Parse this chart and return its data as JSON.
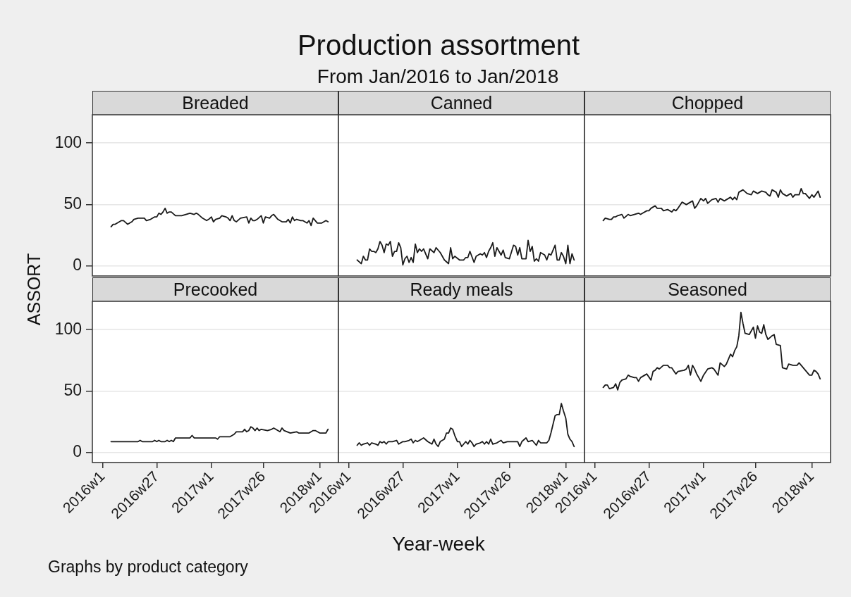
{
  "chart_data": [
    {
      "type": "other",
      "title": "Production assortment",
      "subtitle": "From Jan/2016 to Jan/2018",
      "xlabel": "Year-week",
      "ylabel": "ASSORT",
      "annotations": [
        "Graphs by product category"
      ]
    },
    {
      "type": "line",
      "title": "Breaded",
      "color": "#1a1a1a",
      "tick_labels": "y",
      "grid": "y",
      "xlim": [
        "2015-11-27",
        "2018-03-05"
      ],
      "ylim": [
        -8,
        123
      ],
      "yticks": [
        0,
        50,
        100
      ],
      "x": [
        "2016-01-29",
        "2016-02-05",
        "2016-02-12",
        "2016-03-04",
        "2016-03-11",
        "2016-03-25",
        "2016-04-08",
        "2016-04-15",
        "2016-04-29",
        "2016-05-20",
        "2016-05-27",
        "2016-06-10",
        "2016-06-24",
        "2016-07-01",
        "2016-07-08",
        "2016-07-15",
        "2016-07-22",
        "2016-07-29",
        "2016-08-05",
        "2016-08-12",
        "2016-08-19",
        "2016-09-02",
        "2016-09-23",
        "2016-10-07",
        "2016-10-21",
        "2016-11-04",
        "2016-11-11",
        "2016-11-18",
        "2016-12-02",
        "2016-12-16",
        "2016-12-23",
        "2017-01-01",
        "2017-01-08",
        "2017-01-15",
        "2017-01-29",
        "2017-02-05",
        "2017-02-19",
        "2017-02-26",
        "2017-03-05",
        "2017-03-12",
        "2017-03-19",
        "2017-03-26",
        "2017-04-09",
        "2017-04-30",
        "2017-05-07",
        "2017-05-14",
        "2017-05-21",
        "2017-05-28",
        "2017-06-04",
        "2017-06-18",
        "2017-06-25",
        "2017-07-02",
        "2017-07-16",
        "2017-07-23",
        "2017-07-30",
        "2017-08-13",
        "2017-08-27",
        "2017-09-10",
        "2017-09-17",
        "2017-09-24",
        "2017-10-01",
        "2017-10-08",
        "2017-10-15",
        "2017-10-29",
        "2017-11-05",
        "2017-11-19",
        "2017-11-26",
        "2017-12-03",
        "2017-12-10",
        "2017-12-24",
        "2018-01-08",
        "2018-01-22",
        "2018-01-29"
      ],
      "values": [
        32,
        34,
        34,
        37,
        37,
        34,
        36,
        38,
        39,
        39,
        37,
        38,
        40,
        40,
        43,
        42,
        44,
        47,
        43,
        44,
        44,
        41,
        41,
        42,
        43,
        42,
        43,
        42,
        39,
        37,
        38,
        40,
        36,
        38,
        39,
        41,
        40,
        39,
        37,
        41,
        37,
        36,
        39,
        40,
        35,
        39,
        37,
        37,
        38,
        41,
        35,
        40,
        39,
        41,
        42,
        38,
        36,
        36,
        38,
        35,
        40,
        37,
        38,
        37,
        37,
        35,
        37,
        33,
        39,
        35,
        35,
        37,
        36
      ]
    },
    {
      "type": "line",
      "title": "Canned",
      "color": "#1a1a1a",
      "tick_labels": false,
      "grid": "y",
      "xlim": [
        "2015-11-27",
        "2018-03-05"
      ],
      "ylim": [
        -8,
        123
      ],
      "yticks": [
        0,
        50,
        100
      ],
      "x": [
        "2016-01-29",
        "2016-02-12",
        "2016-02-19",
        "2016-02-26",
        "2016-03-04",
        "2016-03-11",
        "2016-03-18",
        "2016-03-25",
        "2016-04-01",
        "2016-04-08",
        "2016-04-15",
        "2016-04-22",
        "2016-04-29",
        "2016-05-06",
        "2016-05-13",
        "2016-05-20",
        "2016-05-27",
        "2016-06-03",
        "2016-06-10",
        "2016-06-17",
        "2016-06-24",
        "2016-07-01",
        "2016-07-08",
        "2016-07-15",
        "2016-07-22",
        "2016-07-29",
        "2016-08-05",
        "2016-08-12",
        "2016-08-19",
        "2016-08-26",
        "2016-09-02",
        "2016-09-09",
        "2016-09-23",
        "2016-09-30",
        "2016-10-14",
        "2016-10-21",
        "2016-11-04",
        "2016-11-18",
        "2016-12-02",
        "2016-12-09",
        "2016-12-16",
        "2016-12-23",
        "2017-01-08",
        "2017-01-22",
        "2017-01-29",
        "2017-02-05",
        "2017-02-12",
        "2017-02-26",
        "2017-03-05",
        "2017-03-19",
        "2017-03-26",
        "2017-04-02",
        "2017-04-09",
        "2017-04-16",
        "2017-04-23",
        "2017-04-30",
        "2017-05-07",
        "2017-05-14",
        "2017-05-28",
        "2017-06-04",
        "2017-06-11",
        "2017-06-25",
        "2017-07-09",
        "2017-07-16",
        "2017-07-23",
        "2017-07-30",
        "2017-08-06",
        "2017-08-20",
        "2017-08-27",
        "2017-09-03",
        "2017-09-10",
        "2017-09-17",
        "2017-09-24",
        "2017-10-01",
        "2017-10-08",
        "2017-10-22",
        "2017-10-29",
        "2017-11-05",
        "2017-11-12",
        "2017-11-26",
        "2017-12-03",
        "2017-12-10",
        "2017-12-17",
        "2017-12-24",
        "2018-01-01",
        "2018-01-08",
        "2018-01-15",
        "2018-01-22",
        "2018-01-29"
      ],
      "values": [
        5,
        2,
        8,
        5,
        5,
        14,
        12,
        12,
        11,
        14,
        20,
        17,
        11,
        18,
        17,
        20,
        8,
        12,
        12,
        19,
        15,
        1,
        6,
        8,
        3,
        7,
        3,
        18,
        11,
        14,
        12,
        14,
        6,
        14,
        11,
        15,
        11,
        5,
        2,
        15,
        6,
        8,
        5,
        5,
        7,
        7,
        12,
        3,
        8,
        10,
        9,
        11,
        7,
        12,
        15,
        19,
        8,
        15,
        9,
        13,
        7,
        6,
        17,
        16,
        9,
        15,
        6,
        6,
        21,
        12,
        16,
        4,
        6,
        4,
        11,
        9,
        5,
        10,
        9,
        17,
        5,
        5,
        11,
        8,
        2,
        17,
        2,
        10,
        5
      ]
    },
    {
      "type": "line",
      "title": "Chopped",
      "color": "#1a1a1a",
      "tick_labels": false,
      "grid": "y",
      "xlim": [
        "2015-11-27",
        "2018-03-05"
      ],
      "ylim": [
        -8,
        123
      ],
      "yticks": [
        0,
        50,
        100
      ],
      "x": [
        "2016-01-29",
        "2016-02-05",
        "2016-02-19",
        "2016-02-26",
        "2016-03-04",
        "2016-03-11",
        "2016-03-18",
        "2016-04-01",
        "2016-04-08",
        "2016-04-22",
        "2016-04-29",
        "2016-05-13",
        "2016-05-27",
        "2016-06-03",
        "2016-06-10",
        "2016-06-24",
        "2016-07-01",
        "2016-07-08",
        "2016-07-22",
        "2016-07-29",
        "2016-08-12",
        "2016-08-19",
        "2016-09-02",
        "2016-09-16",
        "2016-09-23",
        "2016-09-30",
        "2016-10-07",
        "2016-10-21",
        "2016-11-04",
        "2016-11-11",
        "2016-11-25",
        "2016-12-02",
        "2016-12-09",
        "2016-12-23",
        "2017-01-01",
        "2017-01-08",
        "2017-01-15",
        "2017-01-29",
        "2017-02-12",
        "2017-02-19",
        "2017-02-26",
        "2017-03-12",
        "2017-03-19",
        "2017-04-02",
        "2017-04-09",
        "2017-04-16",
        "2017-04-23",
        "2017-04-30",
        "2017-05-14",
        "2017-05-28",
        "2017-06-11",
        "2017-06-18",
        "2017-07-02",
        "2017-07-16",
        "2017-07-30",
        "2017-08-06",
        "2017-08-13",
        "2017-08-20",
        "2017-09-03",
        "2017-09-10",
        "2017-09-17",
        "2017-09-24",
        "2017-10-08",
        "2017-10-22",
        "2017-10-29",
        "2017-11-05",
        "2017-11-19",
        "2017-11-26",
        "2017-12-03",
        "2017-12-10",
        "2017-12-24",
        "2018-01-01",
        "2018-01-08",
        "2018-01-22",
        "2018-01-29"
      ],
      "values": [
        37,
        39,
        38,
        38,
        40,
        40,
        41,
        42,
        39,
        42,
        41,
        42,
        43,
        42,
        43,
        45,
        45,
        47,
        49,
        47,
        47,
        45,
        46,
        44,
        46,
        45,
        47,
        52,
        50,
        51,
        53,
        47,
        49,
        55,
        53,
        55,
        51,
        54,
        55,
        52,
        55,
        53,
        54,
        56,
        54,
        56,
        54,
        60,
        62,
        59,
        58,
        61,
        59,
        61,
        60,
        58,
        57,
        62,
        60,
        56,
        62,
        59,
        57,
        59,
        56,
        58,
        58,
        63,
        59,
        59,
        55,
        58,
        56,
        61,
        56
      ]
    },
    {
      "type": "line",
      "title": "Precooked",
      "color": "#1a1a1a",
      "grid": "y",
      "xlim": [
        "2015-11-27",
        "2018-03-05"
      ],
      "ylim": [
        -8,
        123
      ],
      "xticks": [
        {
          "value": "2016-01-01",
          "label": "2016w1"
        },
        {
          "value": "2016-07-01",
          "label": "2016w27"
        },
        {
          "value": "2017-01-01",
          "label": "2017w1"
        },
        {
          "value": "2017-06-25",
          "label": "2017w26"
        },
        {
          "value": "2018-01-01",
          "label": "2018w1"
        }
      ],
      "yticks": [
        0,
        50,
        100
      ],
      "x": [
        "2016-01-29",
        "2016-04-29",
        "2016-05-06",
        "2016-05-13",
        "2016-06-17",
        "2016-06-24",
        "2016-07-01",
        "2016-07-08",
        "2016-07-15",
        "2016-07-29",
        "2016-08-05",
        "2016-08-12",
        "2016-08-19",
        "2016-08-26",
        "2016-09-02",
        "2016-10-21",
        "2016-10-28",
        "2016-11-04",
        "2017-01-15",
        "2017-01-22",
        "2017-01-29",
        "2017-03-05",
        "2017-03-19",
        "2017-03-26",
        "2017-04-16",
        "2017-04-23",
        "2017-04-30",
        "2017-05-07",
        "2017-05-14",
        "2017-05-21",
        "2017-05-28",
        "2017-06-04",
        "2017-06-11",
        "2017-06-18",
        "2017-07-09",
        "2017-07-23",
        "2017-07-30",
        "2017-08-13",
        "2017-08-20",
        "2017-08-27",
        "2017-09-03",
        "2017-09-24",
        "2017-10-15",
        "2017-10-22",
        "2017-11-26",
        "2017-12-10",
        "2017-12-17",
        "2018-01-01",
        "2018-01-22",
        "2018-01-29"
      ],
      "values": [
        9,
        9,
        10,
        9,
        9,
        10,
        9,
        10,
        9,
        9,
        10,
        9,
        10,
        9,
        12,
        12,
        14,
        12,
        12,
        11,
        13,
        13,
        15,
        17,
        17,
        19,
        17,
        18,
        21,
        20,
        18,
        20,
        18,
        19,
        18,
        19,
        20,
        18,
        17,
        20,
        18,
        16,
        17,
        16,
        16,
        18,
        18,
        16,
        16,
        19
      ]
    },
    {
      "type": "line",
      "title": "Ready meals",
      "color": "#1a1a1a",
      "tick_labels": "x",
      "grid": "y",
      "xlim": [
        "2015-11-27",
        "2018-03-05"
      ],
      "ylim": [
        -8,
        123
      ],
      "xticks": [
        {
          "value": "2016-01-01",
          "label": "2016w1"
        },
        {
          "value": "2016-07-01",
          "label": "2016w27"
        },
        {
          "value": "2017-01-01",
          "label": "2017w1"
        },
        {
          "value": "2017-06-25",
          "label": "2017w26"
        },
        {
          "value": "2018-01-01",
          "label": "2018w1"
        }
      ],
      "yticks": [
        0,
        50,
        100
      ],
      "x": [
        "2016-01-29",
        "2016-02-05",
        "2016-02-12",
        "2016-02-19",
        "2016-03-04",
        "2016-03-11",
        "2016-03-18",
        "2016-04-01",
        "2016-04-08",
        "2016-04-15",
        "2016-04-22",
        "2016-04-29",
        "2016-05-06",
        "2016-05-13",
        "2016-05-27",
        "2016-06-10",
        "2016-06-17",
        "2016-07-01",
        "2016-07-08",
        "2016-07-22",
        "2016-07-29",
        "2016-08-05",
        "2016-08-12",
        "2016-08-19",
        "2016-09-09",
        "2016-09-23",
        "2016-10-07",
        "2016-10-14",
        "2016-10-21",
        "2016-10-28",
        "2016-11-04",
        "2016-11-18",
        "2016-11-25",
        "2016-12-02",
        "2016-12-09",
        "2016-12-16",
        "2016-12-23",
        "2017-01-01",
        "2017-01-08",
        "2017-01-15",
        "2017-01-29",
        "2017-02-05",
        "2017-02-12",
        "2017-02-19",
        "2017-02-26",
        "2017-03-05",
        "2017-03-19",
        "2017-03-26",
        "2017-04-02",
        "2017-04-09",
        "2017-04-16",
        "2017-04-23",
        "2017-04-30",
        "2017-05-14",
        "2017-05-28",
        "2017-06-04",
        "2017-06-18",
        "2017-07-02",
        "2017-07-09",
        "2017-07-23",
        "2017-07-30",
        "2017-08-06",
        "2017-08-20",
        "2017-08-27",
        "2017-09-10",
        "2017-09-17",
        "2017-09-24",
        "2017-10-01",
        "2017-10-08",
        "2017-10-29",
        "2017-11-05",
        "2017-11-12",
        "2017-11-26",
        "2017-12-03",
        "2017-12-10",
        "2017-12-17",
        "2017-12-24",
        "2018-01-01",
        "2018-01-08",
        "2018-01-15",
        "2018-01-22",
        "2018-01-29"
      ],
      "values": [
        6,
        8,
        6,
        7,
        8,
        6,
        8,
        7,
        6,
        9,
        8,
        9,
        7,
        9,
        9,
        10,
        7,
        9,
        9,
        10,
        11,
        8,
        10,
        9,
        12,
        9,
        7,
        11,
        7,
        5,
        9,
        11,
        16,
        16,
        20,
        19,
        14,
        9,
        9,
        5,
        9,
        7,
        10,
        8,
        5,
        7,
        8,
        9,
        7,
        9,
        7,
        11,
        7,
        8,
        10,
        8,
        9,
        9,
        9,
        9,
        5,
        9,
        12,
        9,
        10,
        8,
        6,
        10,
        8,
        8,
        10,
        16,
        30,
        31,
        31,
        40,
        34,
        28,
        15,
        11,
        9,
        5
      ]
    },
    {
      "type": "line",
      "title": "Seasoned",
      "color": "#1a1a1a",
      "tick_labels": "x",
      "grid": "y",
      "xlim": [
        "2015-11-27",
        "2018-03-05"
      ],
      "ylim": [
        -8,
        123
      ],
      "xticks": [
        {
          "value": "2016-01-01",
          "label": "2016w1"
        },
        {
          "value": "2016-07-01",
          "label": "2016w27"
        },
        {
          "value": "2017-01-01",
          "label": "2017w1"
        },
        {
          "value": "2017-06-25",
          "label": "2017w26"
        },
        {
          "value": "2018-01-01",
          "label": "2018w1"
        }
      ],
      "yticks": [
        0,
        50,
        100
      ],
      "x": [
        "2016-01-29",
        "2016-02-05",
        "2016-02-12",
        "2016-02-19",
        "2016-03-04",
        "2016-03-11",
        "2016-03-18",
        "2016-03-25",
        "2016-04-01",
        "2016-04-15",
        "2016-04-22",
        "2016-04-29",
        "2016-05-13",
        "2016-05-20",
        "2016-05-27",
        "2016-06-03",
        "2016-06-10",
        "2016-06-24",
        "2016-07-08",
        "2016-07-15",
        "2016-07-22",
        "2016-07-29",
        "2016-08-05",
        "2016-08-19",
        "2016-09-02",
        "2016-09-09",
        "2016-09-16",
        "2016-09-30",
        "2016-10-07",
        "2016-10-28",
        "2016-11-04",
        "2016-11-11",
        "2016-11-18",
        "2016-11-25",
        "2016-12-02",
        "2016-12-09",
        "2016-12-23",
        "2017-01-01",
        "2017-01-15",
        "2017-01-29",
        "2017-02-05",
        "2017-02-19",
        "2017-02-26",
        "2017-03-12",
        "2017-03-19",
        "2017-04-02",
        "2017-04-09",
        "2017-04-16",
        "2017-04-23",
        "2017-04-30",
        "2017-05-07",
        "2017-05-14",
        "2017-05-21",
        "2017-06-04",
        "2017-06-11",
        "2017-06-18",
        "2017-06-25",
        "2017-07-02",
        "2017-07-09",
        "2017-07-16",
        "2017-07-23",
        "2017-07-30",
        "2017-08-06",
        "2017-08-20",
        "2017-08-27",
        "2017-09-03",
        "2017-09-17",
        "2017-09-24",
        "2017-10-08",
        "2017-10-15",
        "2017-10-29",
        "2017-11-12",
        "2017-11-19",
        "2017-11-26",
        "2017-12-10",
        "2017-12-24",
        "2018-01-01",
        "2018-01-08",
        "2018-01-15",
        "2018-01-22",
        "2018-01-29"
      ],
      "values": [
        53,
        55,
        55,
        52,
        53,
        56,
        51,
        57,
        59,
        60,
        63,
        62,
        61,
        61,
        58,
        61,
        62,
        64,
        59,
        66,
        67,
        69,
        68,
        71,
        71,
        69,
        69,
        64,
        66,
        67,
        68,
        71,
        63,
        71,
        68,
        64,
        58,
        63,
        68,
        69,
        68,
        63,
        73,
        70,
        72,
        80,
        78,
        83,
        86,
        95,
        114,
        105,
        97,
        96,
        99,
        102,
        93,
        103,
        98,
        97,
        104,
        96,
        92,
        95,
        96,
        88,
        87,
        69,
        68,
        72,
        71,
        71,
        73,
        71,
        67,
        63,
        63,
        67,
        66,
        64,
        60
      ]
    }
  ]
}
